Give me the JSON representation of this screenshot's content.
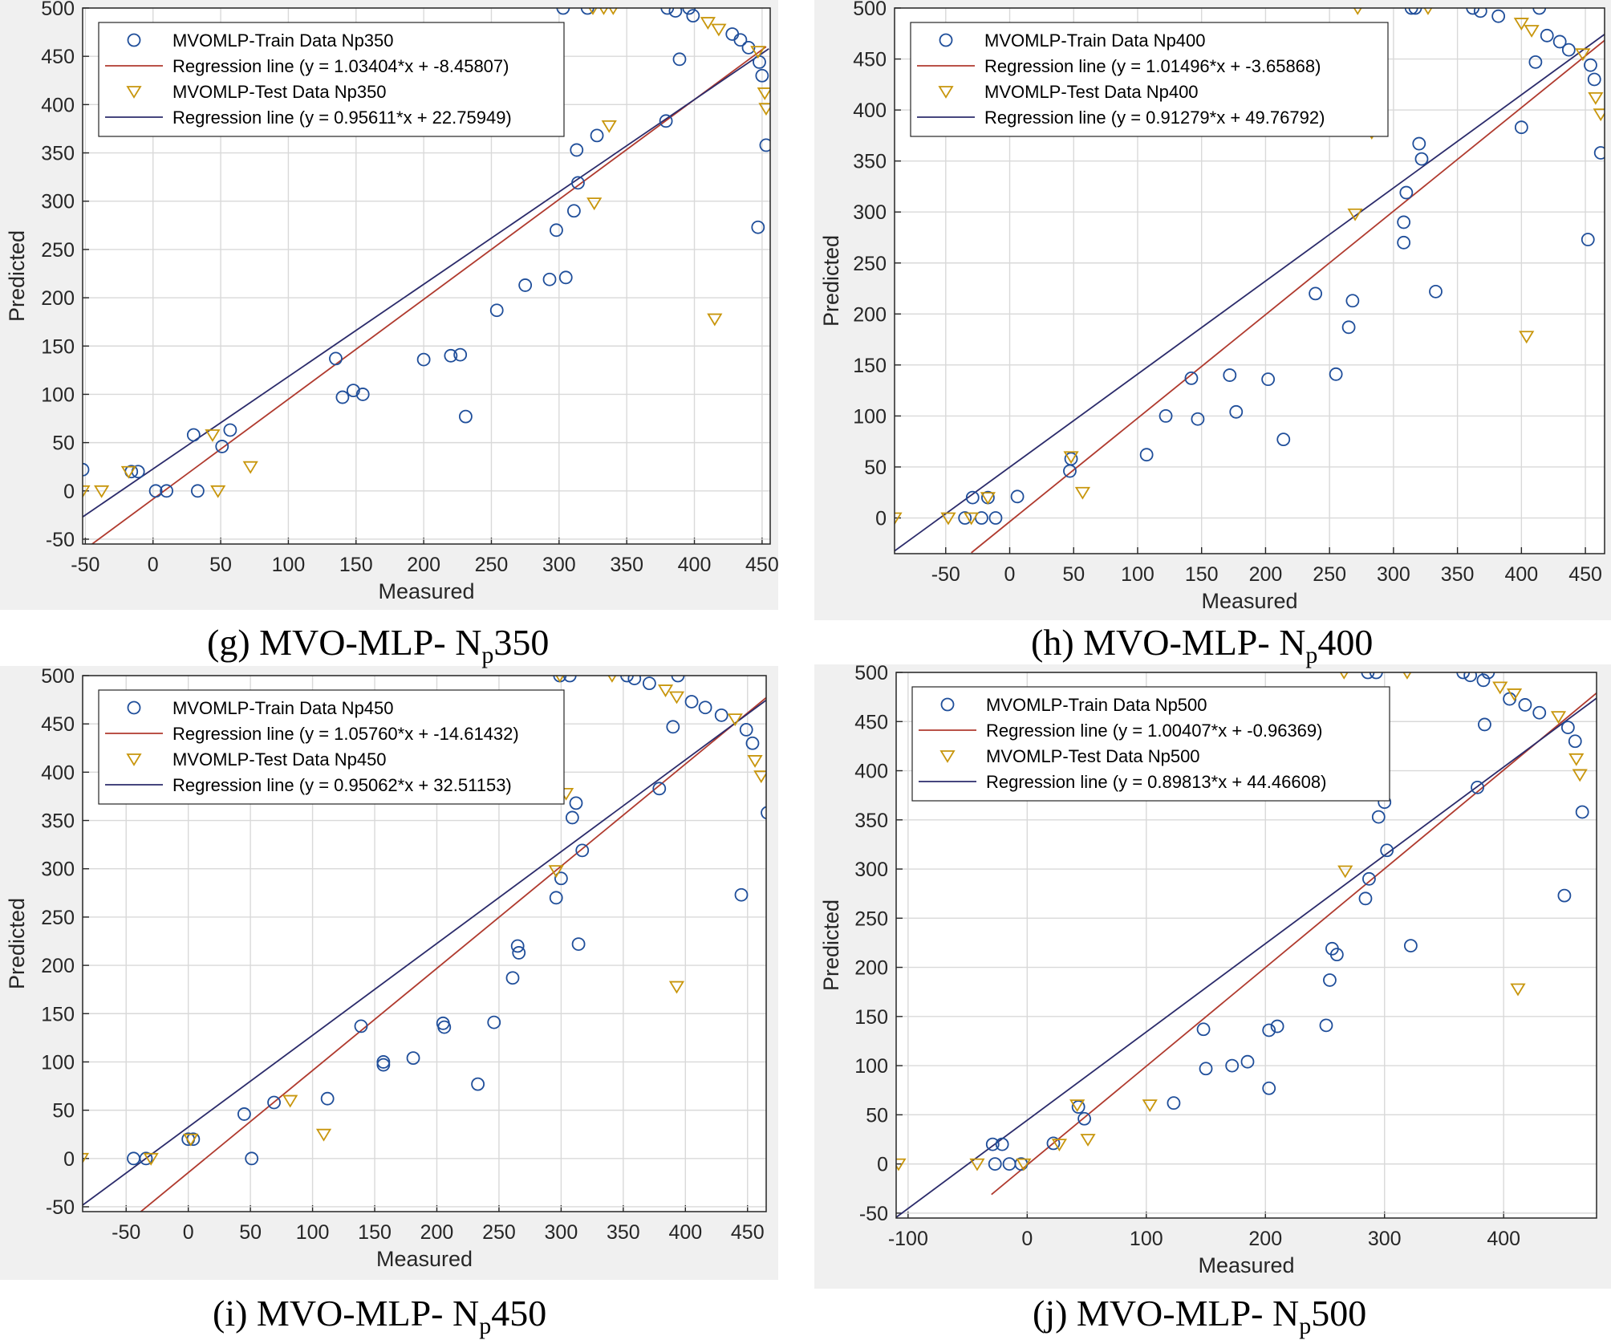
{
  "colors": {
    "train_marker": "#1f4e9a",
    "train_line": "#b03a2e",
    "test_marker": "#c8960c",
    "test_line": "#2b2b6b"
  },
  "chart_data": [
    {
      "type": "scatter",
      "caption_prefix": "(g) MVO-MLP- N",
      "caption_sub": "p",
      "caption_suffix": "350",
      "xlabel": "Measured",
      "ylabel": "Predicted",
      "xlim": [
        -52,
        456
      ],
      "ylim": [
        -55,
        500
      ],
      "xticks": [
        -50,
        0,
        50,
        100,
        150,
        200,
        250,
        300,
        350,
        400,
        450
      ],
      "yticks": [
        -50,
        0,
        50,
        100,
        150,
        200,
        250,
        300,
        350,
        400,
        450,
        500
      ],
      "grid": true,
      "legend_position": "top-left",
      "train_label": "MVOMLP-Train Data Np350",
      "train_reg_label": "Regression line (y = 1.03404*x + -8.45807)",
      "test_label": "MVOMLP-Test Data Np350",
      "test_reg_label": "Regression line (y = 0.95611*x + 22.75949)",
      "train_reg": {
        "slope": 1.03404,
        "intercept": -8.45807,
        "x_range": [
          -50,
          453
        ]
      },
      "test_reg": {
        "slope": 0.95611,
        "intercept": 22.75949,
        "x_range": [
          -52,
          455
        ]
      },
      "train": [
        [
          -52,
          22
        ],
        [
          -16,
          20
        ],
        [
          -11,
          20
        ],
        [
          2,
          0
        ],
        [
          10,
          0
        ],
        [
          30,
          58
        ],
        [
          33,
          0
        ],
        [
          51,
          46
        ],
        [
          57,
          63
        ],
        [
          135,
          137
        ],
        [
          140,
          97
        ],
        [
          148,
          104
        ],
        [
          155,
          100
        ],
        [
          200,
          136
        ],
        [
          220,
          140
        ],
        [
          227,
          141
        ],
        [
          231,
          77
        ],
        [
          254,
          187
        ],
        [
          275,
          213
        ],
        [
          293,
          219
        ],
        [
          298,
          270
        ],
        [
          305,
          221
        ],
        [
          311,
          290
        ],
        [
          313,
          353
        ],
        [
          314,
          319
        ],
        [
          328,
          368
        ],
        [
          303,
          500
        ],
        [
          321,
          500
        ],
        [
          379,
          383
        ],
        [
          380,
          500
        ],
        [
          386,
          497
        ],
        [
          389,
          447
        ],
        [
          396,
          500
        ],
        [
          399,
          492
        ],
        [
          428,
          473
        ],
        [
          434,
          467
        ],
        [
          440,
          459
        ],
        [
          448,
          444
        ],
        [
          450,
          430
        ],
        [
          447,
          273
        ],
        [
          453,
          358
        ]
      ],
      "test": [
        [
          -52,
          0
        ],
        [
          -38,
          0
        ],
        [
          -18,
          20
        ],
        [
          44,
          58
        ],
        [
          48,
          0
        ],
        [
          72,
          25
        ],
        [
          326,
          298
        ],
        [
          337,
          378
        ],
        [
          325,
          500
        ],
        [
          333,
          500
        ],
        [
          340,
          500
        ],
        [
          415,
          178
        ],
        [
          410,
          485
        ],
        [
          418,
          478
        ],
        [
          447,
          455
        ],
        [
          452,
          412
        ],
        [
          453,
          396
        ]
      ]
    },
    {
      "type": "scatter",
      "caption_prefix": "(h) MVO-MLP- N",
      "caption_sub": "p",
      "caption_suffix": "400",
      "xlabel": "Measured",
      "ylabel": "Predicted",
      "xlim": [
        -90,
        465
      ],
      "ylim": [
        -35,
        500
      ],
      "xticks": [
        -50,
        0,
        50,
        100,
        150,
        200,
        250,
        300,
        350,
        400,
        450
      ],
      "yticks": [
        0,
        50,
        100,
        150,
        200,
        250,
        300,
        350,
        400,
        450,
        500
      ],
      "grid": true,
      "legend_position": "top-left",
      "train_label": "MVOMLP-Train Data Np400",
      "train_reg_label": "Regression line (y = 1.01496*x + -3.65868)",
      "test_label": "MVOMLP-Test Data Np400",
      "test_reg_label": "Regression line (y = 0.91279*x + 49.76792)",
      "train_reg": {
        "slope": 1.01496,
        "intercept": -3.65868,
        "x_range": [
          -30,
          465
        ]
      },
      "test_reg": {
        "slope": 0.91279,
        "intercept": 49.76792,
        "x_range": [
          -90,
          465
        ]
      },
      "train": [
        [
          -35,
          0
        ],
        [
          -29,
          20
        ],
        [
          -22,
          0
        ],
        [
          -17,
          20
        ],
        [
          -11,
          0
        ],
        [
          6,
          21
        ],
        [
          47,
          46
        ],
        [
          48,
          58
        ],
        [
          107,
          62
        ],
        [
          122,
          100
        ],
        [
          142,
          137
        ],
        [
          147,
          97
        ],
        [
          172,
          140
        ],
        [
          177,
          104
        ],
        [
          202,
          136
        ],
        [
          214,
          77
        ],
        [
          239,
          220
        ],
        [
          255,
          141
        ],
        [
          265,
          187
        ],
        [
          268,
          213
        ],
        [
          308,
          290
        ],
        [
          308,
          270
        ],
        [
          310,
          319
        ],
        [
          314,
          500
        ],
        [
          317,
          500
        ],
        [
          320,
          367
        ],
        [
          322,
          352
        ],
        [
          333,
          222
        ],
        [
          362,
          500
        ],
        [
          368,
          497
        ],
        [
          382,
          492
        ],
        [
          400,
          383
        ],
        [
          411,
          447
        ],
        [
          414,
          500
        ],
        [
          420,
          473
        ],
        [
          430,
          467
        ],
        [
          437,
          459
        ],
        [
          452,
          273
        ],
        [
          454,
          444
        ],
        [
          457,
          430
        ],
        [
          462,
          358
        ]
      ],
      "test": [
        [
          -90,
          0
        ],
        [
          -48,
          0
        ],
        [
          -30,
          0
        ],
        [
          -17,
          20
        ],
        [
          48,
          60
        ],
        [
          57,
          25
        ],
        [
          270,
          298
        ],
        [
          283,
          378
        ],
        [
          272,
          500
        ],
        [
          327,
          500
        ],
        [
          404,
          178
        ],
        [
          400,
          485
        ],
        [
          408,
          478
        ],
        [
          448,
          455
        ],
        [
          458,
          412
        ],
        [
          462,
          396
        ]
      ]
    },
    {
      "type": "scatter",
      "caption_prefix": "(i) MVO-MLP- N",
      "caption_sub": "p",
      "caption_suffix": "450",
      "xlabel": "Measured",
      "ylabel": "Predicted",
      "xlim": [
        -85,
        465
      ],
      "ylim": [
        -55,
        500
      ],
      "xticks": [
        -50,
        0,
        50,
        100,
        150,
        200,
        250,
        300,
        350,
        400,
        450
      ],
      "yticks": [
        -50,
        0,
        50,
        100,
        150,
        200,
        250,
        300,
        350,
        400,
        450,
        500
      ],
      "grid": true,
      "legend_position": "top-left",
      "train_label": "MVOMLP-Train Data Np450",
      "train_reg_label": "Regression line (y = 1.05760*x + -14.61432)",
      "test_label": "MVOMLP-Test Data Np450",
      "test_reg_label": "Regression line (y = 0.95062*x + 32.51153)",
      "train_reg": {
        "slope": 1.0576,
        "intercept": -14.61432,
        "x_range": [
          -40,
          465
        ]
      },
      "test_reg": {
        "slope": 0.95062,
        "intercept": 32.51153,
        "x_range": [
          -85,
          465
        ]
      },
      "train": [
        [
          -44,
          0
        ],
        [
          -34,
          0
        ],
        [
          0,
          20
        ],
        [
          4,
          20
        ],
        [
          45,
          46
        ],
        [
          51,
          0
        ],
        [
          69,
          58
        ],
        [
          112,
          62
        ],
        [
          139,
          137
        ],
        [
          157,
          97
        ],
        [
          157,
          100
        ],
        [
          181,
          104
        ],
        [
          205,
          140
        ],
        [
          206,
          136
        ],
        [
          233,
          77
        ],
        [
          246,
          141
        ],
        [
          261,
          187
        ],
        [
          265,
          220
        ],
        [
          266,
          213
        ],
        [
          296,
          270
        ],
        [
          300,
          290
        ],
        [
          299,
          500
        ],
        [
          307,
          500
        ],
        [
          309,
          353
        ],
        [
          312,
          368
        ],
        [
          314,
          222
        ],
        [
          317,
          319
        ],
        [
          353,
          500
        ],
        [
          359,
          497
        ],
        [
          371,
          492
        ],
        [
          379,
          383
        ],
        [
          390,
          447
        ],
        [
          394,
          500
        ],
        [
          405,
          473
        ],
        [
          416,
          467
        ],
        [
          429,
          459
        ],
        [
          445,
          273
        ],
        [
          449,
          444
        ],
        [
          454,
          430
        ],
        [
          466,
          358
        ]
      ],
      "test": [
        [
          -86,
          0
        ],
        [
          -30,
          0
        ],
        [
          2,
          20
        ],
        [
          82,
          60
        ],
        [
          109,
          25
        ],
        [
          296,
          298
        ],
        [
          304,
          378
        ],
        [
          299,
          500
        ],
        [
          341,
          500
        ],
        [
          393,
          178
        ],
        [
          384,
          485
        ],
        [
          393,
          478
        ],
        [
          440,
          455
        ],
        [
          456,
          412
        ],
        [
          461,
          396
        ]
      ]
    },
    {
      "type": "scatter",
      "caption_prefix": "(j) MVO-MLP- N",
      "caption_sub": "p",
      "caption_suffix": "500",
      "xlabel": "Measured",
      "ylabel": "Predicted",
      "xlim": [
        -110,
        478
      ],
      "ylim": [
        -55,
        500
      ],
      "xticks": [
        -100,
        0,
        100,
        200,
        300,
        400
      ],
      "yticks": [
        -50,
        0,
        50,
        100,
        150,
        200,
        250,
        300,
        350,
        400,
        450,
        500
      ],
      "grid": true,
      "legend_position": "top-left",
      "train_label": "MVOMLP-Train Data Np500",
      "train_reg_label": "Regression line (y = 1.00407*x + -0.96369)",
      "test_label": "MVOMLP-Test Data Np500",
      "test_reg_label": "Regression line (y = 0.89813*x + 44.46608)",
      "train_reg": {
        "slope": 1.00407,
        "intercept": -0.96369,
        "x_range": [
          -30,
          478
        ]
      },
      "test_reg": {
        "slope": 0.89813,
        "intercept": 44.46608,
        "x_range": [
          -110,
          478
        ]
      },
      "train": [
        [
          -29,
          20
        ],
        [
          -27,
          0
        ],
        [
          -21,
          20
        ],
        [
          -15,
          0
        ],
        [
          -5,
          0
        ],
        [
          22,
          21
        ],
        [
          43,
          58
        ],
        [
          48,
          46
        ],
        [
          123,
          62
        ],
        [
          148,
          137
        ],
        [
          150,
          97
        ],
        [
          172,
          100
        ],
        [
          185,
          104
        ],
        [
          203,
          136
        ],
        [
          210,
          140
        ],
        [
          203,
          77
        ],
        [
          251,
          141
        ],
        [
          254,
          187
        ],
        [
          256,
          219
        ],
        [
          260,
          213
        ],
        [
          284,
          270
        ],
        [
          287,
          290
        ],
        [
          286,
          500
        ],
        [
          293,
          500
        ],
        [
          295,
          353
        ],
        [
          300,
          368
        ],
        [
          302,
          319
        ],
        [
          322,
          222
        ],
        [
          366,
          500
        ],
        [
          372,
          497
        ],
        [
          378,
          383
        ],
        [
          383,
          492
        ],
        [
          384,
          447
        ],
        [
          387,
          500
        ],
        [
          405,
          473
        ],
        [
          418,
          467
        ],
        [
          430,
          459
        ],
        [
          451,
          273
        ],
        [
          454,
          444
        ],
        [
          460,
          430
        ],
        [
          466,
          358
        ]
      ],
      "test": [
        [
          -108,
          0
        ],
        [
          -42,
          0
        ],
        [
          -3,
          0
        ],
        [
          27,
          20
        ],
        [
          42,
          60
        ],
        [
          51,
          25
        ],
        [
          103,
          60
        ],
        [
          267,
          298
        ],
        [
          266,
          500
        ],
        [
          319,
          500
        ],
        [
          412,
          178
        ],
        [
          397,
          485
        ],
        [
          409,
          478
        ],
        [
          446,
          455
        ],
        [
          461,
          412
        ],
        [
          464,
          396
        ]
      ]
    }
  ]
}
